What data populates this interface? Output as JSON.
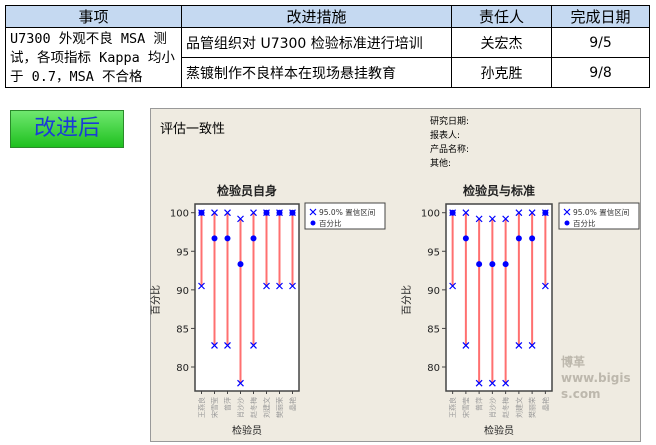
{
  "table": {
    "headers": [
      "事项",
      "改进措施",
      "责任人",
      "完成日期"
    ],
    "issue": "U7300 外观不良 MSA 测试，各项指标 Kappa 均小于 0.7，MSA 不合格",
    "rows": [
      {
        "action": "品管组织对 U7300 检验标准进行培训",
        "owner": "关宏杰",
        "date": "9/5"
      },
      {
        "action": "蒸镀制作不良样本在现场悬挂教育",
        "owner": "孙克胜",
        "date": "9/8"
      }
    ]
  },
  "badge": "改进后",
  "panel": {
    "title": "评估一致性",
    "meta": [
      "研究日期:",
      "报表人:",
      "产品名称:",
      "其他:"
    ],
    "watermark": "博革 www.bigiss.com"
  },
  "colors": {
    "interval": "#ff7070",
    "marker": "#0000ff",
    "header": "#c5d9f1",
    "panel": "#efebe1"
  },
  "chart_data": [
    {
      "type": "scatter",
      "title": "检验员自身",
      "xlabel": "检验员",
      "ylabel": "百分比",
      "ylim": [
        77,
        101
      ],
      "yticks": [
        80,
        85,
        90,
        95,
        100
      ],
      "categories": [
        "王燕良",
        "宋雪莹",
        "曾萍",
        "肖沙沙",
        "赵冬梅",
        "刘建文",
        "樊丽荣",
        "晶艳"
      ],
      "legend": [
        "95.0% 置信区间",
        "百分比"
      ],
      "legend_position": "right",
      "percent": [
        100,
        96.67,
        96.67,
        93.33,
        96.67,
        100,
        100,
        100
      ],
      "lower": [
        90.5,
        82.8,
        82.8,
        77.9,
        82.8,
        90.5,
        90.5,
        90.5
      ],
      "upper": [
        100,
        100,
        100,
        99.2,
        100,
        100,
        100,
        100
      ]
    },
    {
      "type": "scatter",
      "title": "检验员与标准",
      "xlabel": "检验员",
      "ylabel": "百分比",
      "ylim": [
        77,
        101
      ],
      "yticks": [
        80,
        85,
        90,
        95,
        100
      ],
      "categories": [
        "王燕良",
        "宋雪莹",
        "曾萍",
        "肖沙沙",
        "赵冬梅",
        "刘建文",
        "樊丽荣",
        "晶艳"
      ],
      "legend": [
        "95.0% 置信区间",
        "百分比"
      ],
      "legend_position": "right",
      "percent": [
        100,
        96.67,
        93.33,
        93.33,
        93.33,
        96.67,
        96.67,
        100
      ],
      "lower": [
        90.5,
        82.8,
        77.9,
        77.9,
        77.9,
        82.8,
        82.8,
        90.5
      ],
      "upper": [
        100,
        100,
        99.2,
        99.2,
        99.2,
        100,
        100,
        100
      ]
    }
  ]
}
